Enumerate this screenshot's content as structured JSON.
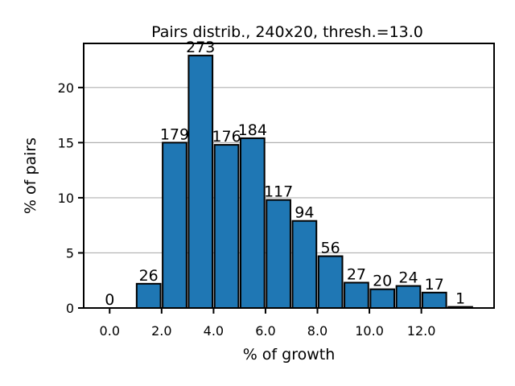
{
  "chart_data": {
    "type": "bar",
    "title": "Pairs distrib., 240x20, thresh.=13.0",
    "xlabel": "% of growth",
    "ylabel": "% of pairs",
    "x_ticks": [
      "0.0",
      "2.0",
      "4.0",
      "6.0",
      "8.0",
      "10.0",
      "12.0"
    ],
    "y_ticks": [
      "0",
      "5",
      "10",
      "15",
      "20"
    ],
    "xlim": [
      -1.0,
      14.8
    ],
    "ylim": [
      0,
      24
    ],
    "grid": "horizontal",
    "bar_color": "#1f77b4",
    "bar_edge_color": "#000000",
    "bars": [
      {
        "x": 0.0,
        "value": 0.0,
        "count": "0"
      },
      {
        "x": 1.5,
        "value": 2.2,
        "count": "26"
      },
      {
        "x": 2.5,
        "value": 15.0,
        "count": "179"
      },
      {
        "x": 3.5,
        "value": 22.9,
        "count": "273"
      },
      {
        "x": 4.5,
        "value": 14.8,
        "count": "176"
      },
      {
        "x": 5.5,
        "value": 15.4,
        "count": "184"
      },
      {
        "x": 6.5,
        "value": 9.8,
        "count": "117"
      },
      {
        "x": 7.5,
        "value": 7.9,
        "count": "94"
      },
      {
        "x": 8.5,
        "value": 4.7,
        "count": "56"
      },
      {
        "x": 9.5,
        "value": 2.3,
        "count": "27"
      },
      {
        "x": 10.5,
        "value": 1.7,
        "count": "20"
      },
      {
        "x": 11.5,
        "value": 2.0,
        "count": "24"
      },
      {
        "x": 12.5,
        "value": 1.4,
        "count": "17"
      },
      {
        "x": 13.5,
        "value": 0.1,
        "count": "1"
      }
    ]
  }
}
